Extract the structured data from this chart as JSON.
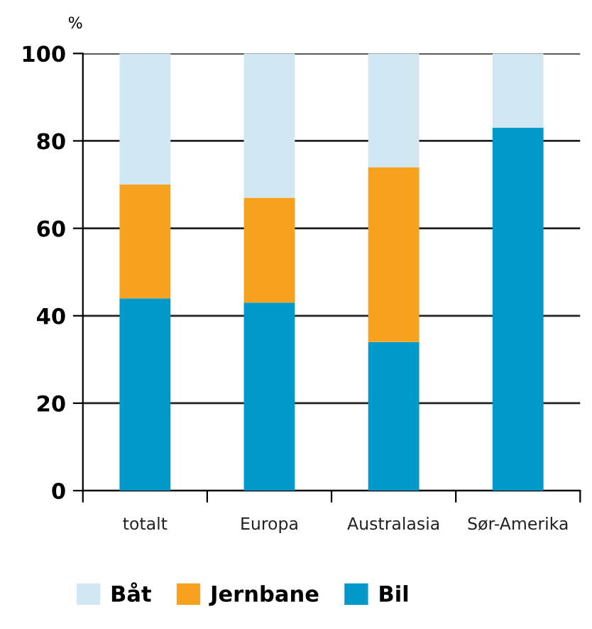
{
  "chart_data": {
    "type": "bar",
    "stacked": true,
    "ylabel": "%",
    "categories": [
      "totalt",
      "Europa",
      "Australasia",
      "Sør-Amerika"
    ],
    "series": [
      {
        "name": "Bil",
        "color": "#0099c9",
        "values": [
          44,
          43,
          34,
          83
        ]
      },
      {
        "name": "Jernbane",
        "color": "#f7a21e",
        "values": [
          26,
          24,
          40,
          0
        ]
      },
      {
        "name": "Båt",
        "color": "#d1e8f2",
        "values": [
          30,
          33,
          26,
          17
        ]
      }
    ],
    "ylim": [
      0,
      100
    ],
    "yticks": [
      0,
      20,
      40,
      60,
      80,
      100
    ],
    "grid": "y",
    "legend": "bottom"
  }
}
